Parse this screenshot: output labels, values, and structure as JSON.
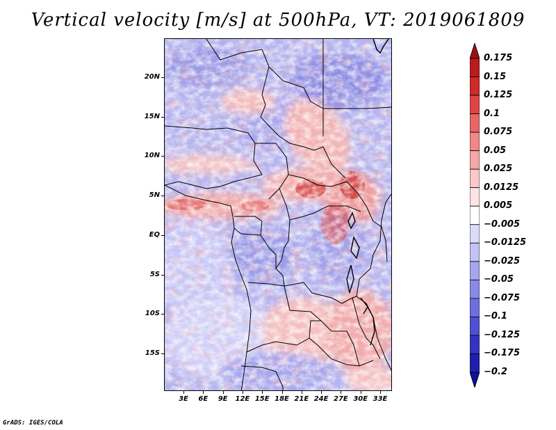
{
  "title": "Vertical velocity [m/s] at 500hPa, VT: 2019061809",
  "credit": "GrADS: IGES/COLA",
  "lat_labels": [
    "20N",
    "15N",
    "10N",
    "5N",
    "EQ",
    "5S",
    "10S",
    "15S"
  ],
  "lon_labels": [
    "3E",
    "6E",
    "9E",
    "12E",
    "15E",
    "18E",
    "21E",
    "24E",
    "27E",
    "30E",
    "33E"
  ],
  "colorbar": {
    "levels": [
      "0.175",
      "0.15",
      "0.125",
      "0.1",
      "0.075",
      "0.05",
      "0.025",
      "0.0125",
      "0.005",
      "-0.005",
      "-0.0125",
      "-0.025",
      "-0.05",
      "-0.075",
      "-0.1",
      "-0.125",
      "-0.175",
      "-0.2"
    ],
    "colors": [
      "#a01010",
      "#b81c1c",
      "#d02a2a",
      "#de4646",
      "#e86666",
      "#ef8888",
      "#f5a8a8",
      "#fac8c8",
      "#fde4e4",
      "#ffffff",
      "#dcdcf8",
      "#c2c2f4",
      "#a6a6ee",
      "#8a8ae6",
      "#6e6ede",
      "#5050d2",
      "#3434c2",
      "#2020ac",
      "#10109a"
    ]
  },
  "map": {
    "type": "heatmap",
    "variable": "Vertical velocity",
    "units": "m/s",
    "level": "500hPa",
    "valid_time": "2019061809",
    "lat_range": [
      "19S",
      "24N"
    ],
    "lon_range": [
      "0E",
      "35E"
    ]
  }
}
